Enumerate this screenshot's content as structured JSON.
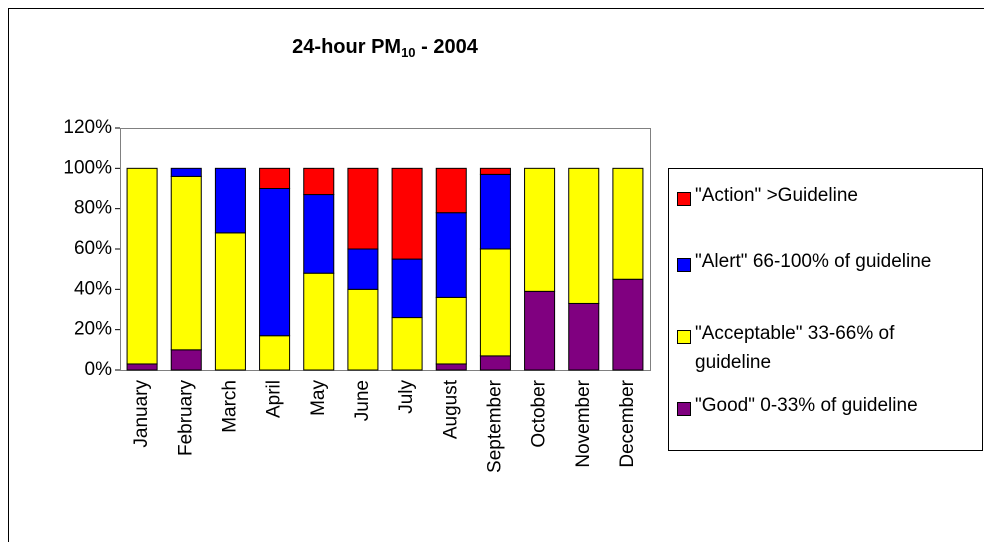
{
  "chart_data": {
    "type": "stacked_bar",
    "title_parts": [
      "24-hour PM",
      "10",
      " - 2004"
    ],
    "categories": [
      "January",
      "February",
      "March",
      "April",
      "May",
      "June",
      "July",
      "August",
      "September",
      "October",
      "November",
      "December"
    ],
    "series": [
      {
        "name": "\"Good\" 0-33% of guideline",
        "color": "#800080",
        "values": [
          3,
          10,
          0,
          0,
          0,
          0,
          0,
          3,
          7,
          39,
          33,
          45
        ]
      },
      {
        "name": "\"Acceptable\" 33-66% of guideline",
        "color": "#ffff00",
        "values": [
          97,
          86,
          68,
          17,
          48,
          40,
          26,
          33,
          53,
          61,
          67,
          55
        ]
      },
      {
        "name": "\"Alert\" 66-100% of guideline",
        "color": "#0000ff",
        "values": [
          0,
          4,
          32,
          73,
          39,
          20,
          29,
          42,
          37,
          0,
          0,
          0
        ]
      },
      {
        "name": "\"Action\" >Guideline",
        "color": "#ff0000",
        "values": [
          0,
          0,
          0,
          10,
          13,
          40,
          45,
          22,
          3,
          0,
          0,
          0
        ]
      }
    ],
    "ylim": [
      0,
      120
    ],
    "yticks": [
      {
        "value": 0,
        "label": "0%"
      },
      {
        "value": 20,
        "label": "20%"
      },
      {
        "value": 40,
        "label": "40%"
      },
      {
        "value": 60,
        "label": "60%"
      },
      {
        "value": 80,
        "label": "80%"
      },
      {
        "value": 100,
        "label": "100%"
      },
      {
        "value": 120,
        "label": "120%"
      }
    ],
    "legend": "right"
  }
}
